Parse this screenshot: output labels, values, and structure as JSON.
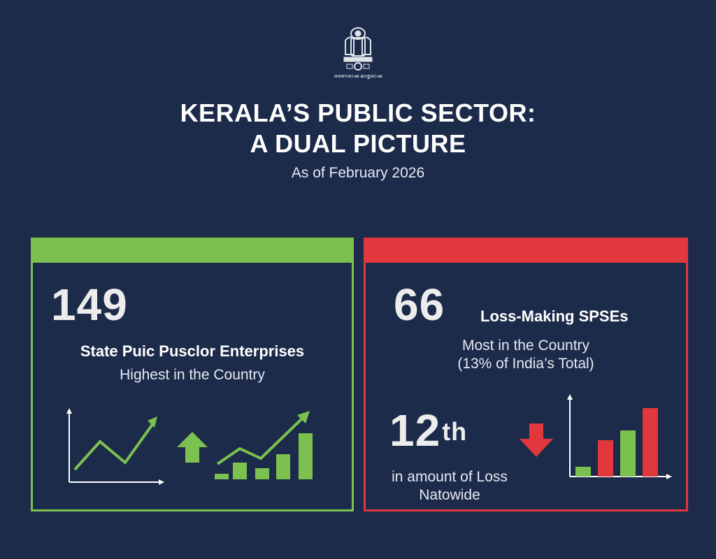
{
  "header": {
    "emblem_text": "ഭരണഭാഷ മാതൃഭാഷ",
    "title_line1": "KERALA’S PUBLIC SECTOR:",
    "title_line2": "A DUAL PICTURE",
    "subtitle": "As of February 2026"
  },
  "left_panel": {
    "accent_color": "#7cc14f",
    "big_number": "149",
    "headline": "State Puic Pusclor Enterprises",
    "subline": "Highest in the Country",
    "icons": [
      "line-chart-up-icon",
      "arrow-up-icon",
      "bar-chart-up-icon"
    ]
  },
  "right_panel": {
    "accent_color": "#e0383c",
    "big_number": "66",
    "big_number_label": "Loss-Making SPSEs",
    "subline1": "Most in the Country",
    "subline2": "(13% of India’s Total)",
    "rank_number": "12",
    "rank_suffix": "th",
    "rank_line1": "in amount of Loss",
    "rank_line2": "Natowide",
    "icons": [
      "arrow-down-icon",
      "bar-chart-icon"
    ]
  }
}
